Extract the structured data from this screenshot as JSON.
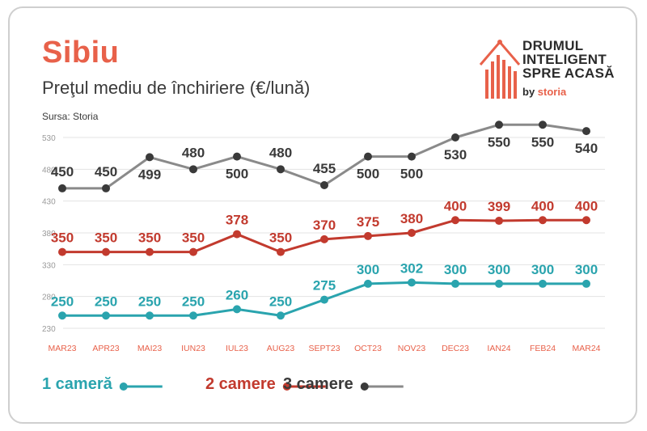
{
  "header": {
    "title": "Sibiu",
    "subtitle": "Preţul mediu de închiriere (€/lună)",
    "source": "Sursa: Storia"
  },
  "logo": {
    "line1": "DRUMUL",
    "line2": "INTELIGENT",
    "line3": "SPRE ACASĂ",
    "by": "by",
    "brand": "storia"
  },
  "colors": {
    "accent": "#e8614a",
    "series1": "#2aa4ae",
    "series2": "#c23a2e",
    "series3": "#8a8a8a",
    "markers3": "#3a3a3a"
  },
  "chart_data": {
    "type": "line",
    "categories": [
      "MAR23",
      "APR23",
      "MAI23",
      "IUN23",
      "IUL23",
      "AUG23",
      "SEPT23",
      "OCT23",
      "NOV23",
      "DEC23",
      "IAN24",
      "FEB24",
      "MAR24"
    ],
    "yticks": [
      230,
      280,
      330,
      380,
      430,
      480,
      530
    ],
    "ylim": [
      230,
      545
    ],
    "grid": true,
    "legend_position": "bottom-left",
    "series": [
      {
        "name": "1 cameră",
        "values": [
          250,
          250,
          250,
          250,
          260,
          250,
          275,
          300,
          302,
          300,
          300,
          300,
          300
        ]
      },
      {
        "name": "2 camere",
        "values": [
          350,
          350,
          350,
          350,
          378,
          350,
          370,
          375,
          380,
          400,
          399,
          400,
          400
        ]
      },
      {
        "name": "3 camere",
        "values": [
          450,
          450,
          499,
          480,
          500,
          480,
          455,
          500,
          500,
          530,
          550,
          550,
          540
        ]
      }
    ],
    "data_labels": [
      [
        "250",
        "250",
        "250",
        "250",
        "260",
        "250",
        "275",
        "300",
        "302",
        "300",
        "300",
        "300",
        "300"
      ],
      [
        "350",
        "350",
        "350",
        "350",
        "378",
        "350",
        "370",
        "375",
        "380",
        "400",
        "399",
        "400",
        "400"
      ],
      [
        "450",
        "450",
        "499",
        "480",
        "500",
        "480",
        "455",
        "500",
        "500",
        "530",
        "550",
        "550",
        "540"
      ]
    ]
  }
}
